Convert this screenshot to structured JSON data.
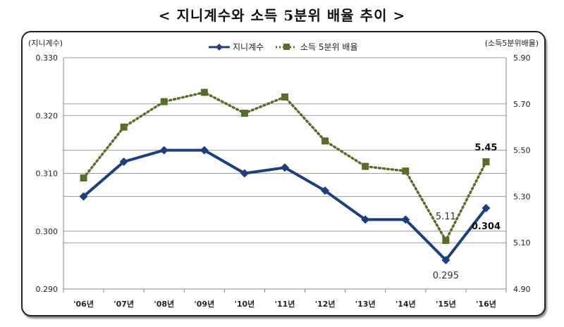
{
  "title": "< 지니계수와 소득 5분위 배율 추이 >",
  "chart_data": {
    "type": "line",
    "categories": [
      "'06년",
      "'07년",
      "'08년",
      "'09년",
      "'10년",
      "'11년",
      "'12년",
      "'13년",
      "'14년",
      "'15년",
      "'16년"
    ],
    "left_axis": {
      "unit_label": "(지니계수)",
      "ylim": [
        0.29,
        0.33
      ],
      "ticks": [
        "0.290",
        "0.300",
        "0.310",
        "0.320",
        "0.330"
      ]
    },
    "right_axis": {
      "unit_label": "(소득5분위배율)",
      "ylim": [
        4.9,
        5.9
      ],
      "ticks": [
        "4.90",
        "5.10",
        "5.30",
        "5.50",
        "5.70",
        "5.90"
      ]
    },
    "series": [
      {
        "name": "지니계수",
        "axis": "left",
        "style": "solid",
        "color": "#1f3f7a",
        "values": [
          0.306,
          0.312,
          0.314,
          0.314,
          0.31,
          0.311,
          0.307,
          0.302,
          0.302,
          0.295,
          0.304
        ]
      },
      {
        "name": "소득 5분위 배율",
        "axis": "right",
        "style": "dotted",
        "color": "#5a6b2a",
        "values": [
          5.38,
          5.6,
          5.71,
          5.75,
          5.66,
          5.73,
          5.54,
          5.43,
          5.41,
          5.11,
          5.45
        ]
      }
    ],
    "annotations": [
      {
        "text": "5.45",
        "series": 1,
        "index": 10,
        "bold": true
      },
      {
        "text": "5.11",
        "series": 1,
        "index": 9,
        "bold": false
      },
      {
        "text": "0.304",
        "series": 0,
        "index": 10,
        "bold": true
      },
      {
        "text": "0.295",
        "series": 0,
        "index": 9,
        "bold": false
      }
    ],
    "grid": true,
    "legend": "top-center"
  }
}
